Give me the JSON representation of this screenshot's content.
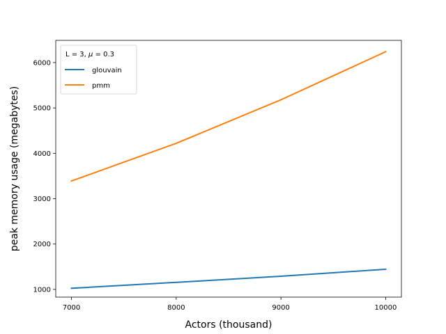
{
  "chart_data": {
    "type": "line",
    "xlabel": "Actors (thousand)",
    "ylabel": "peak memory usage (megabytes)",
    "x": [
      7000,
      8000,
      9000,
      10000
    ],
    "xlim": [
      6850,
      10150
    ],
    "ylim": [
      830,
      6490
    ],
    "xticks": [
      7000,
      8000,
      9000,
      10000
    ],
    "yticks": [
      1000,
      2000,
      3000,
      4000,
      5000,
      6000
    ],
    "grid": false,
    "legend": {
      "placement": "top-left",
      "title_prefix": "L = 3, ",
      "title_symbol": "μ",
      "title_suffix": " = 0.3"
    },
    "series": [
      {
        "name": "glouvain",
        "color": "#1f77b4",
        "values": [
          1025,
          1155,
          1290,
          1445
        ]
      },
      {
        "name": "pmm",
        "color": "#ff7f0e",
        "values": [
          3390,
          4220,
          5180,
          6240
        ]
      }
    ]
  }
}
